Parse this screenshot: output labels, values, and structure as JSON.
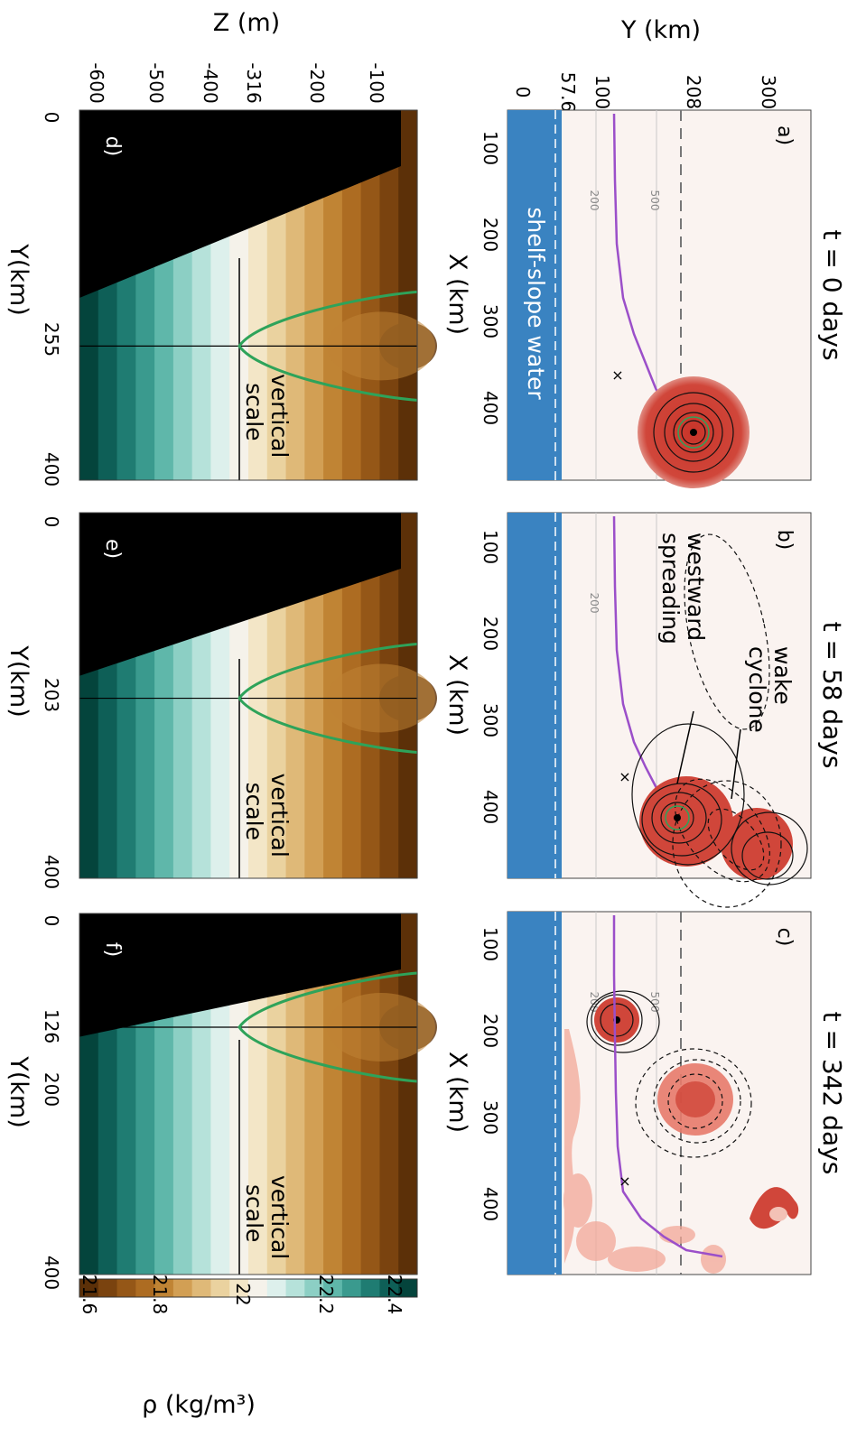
{
  "figure": {
    "top_row": {
      "ylabel": "Y (km)",
      "xlabel": "X (km)",
      "y_ticks": [
        "0",
        "57.6",
        "100",
        "208",
        "300"
      ],
      "x_ticks": [
        "100",
        "200",
        "300",
        "400"
      ],
      "panels": [
        {
          "label": "a)",
          "title": "t = 0 days"
        },
        {
          "label": "b)",
          "title": "t = 58 days"
        },
        {
          "label": "c)",
          "title": "t = 342 days"
        }
      ],
      "shelf_label": "shelf-slope water",
      "annotations": {
        "wake": "wake cyclone",
        "westward": "westward spreading"
      },
      "isobaths": {
        "a": [
          "200",
          "500"
        ],
        "b": [
          "200"
        ],
        "c": [
          "500",
          "200"
        ]
      }
    },
    "bottom_row": {
      "ylabel": "Z (m)",
      "xlabel": "Y(km)",
      "z_ticks": [
        "-600",
        "-500",
        "-400",
        "-316",
        "-200",
        "-100"
      ],
      "panels": [
        {
          "label": "d)",
          "y_ticks": [
            "0",
            "255",
            "400"
          ],
          "annot": "vertical scale"
        },
        {
          "label": "e)",
          "y_ticks": [
            "0",
            "203",
            "400"
          ],
          "annot": "vertical scale"
        },
        {
          "label": "f)",
          "y_ticks": [
            "0",
            "126",
            "200",
            "400"
          ],
          "annot": "vertical scale"
        }
      ]
    },
    "colorbar": {
      "label": "ρ (kg/m³)",
      "ticks": [
        "21.6",
        "21.8",
        "22",
        "22.2",
        "22.4"
      ],
      "colors": [
        "#5c3008",
        "#7a430f",
        "#955717",
        "#ad6c22",
        "#c08434",
        "#d29f54",
        "#dfb978",
        "#ead29f",
        "#f3e6c7",
        "#f5f2ea",
        "#ddf0ec",
        "#b6e2da",
        "#8ccfc4",
        "#5fb7aa",
        "#3a9a8e",
        "#1f7c72",
        "#0e5f57",
        "#04443c"
      ]
    },
    "colors": {
      "eddy": "#d0463a",
      "shelf": "#3a83c1",
      "track": "#9b4fc9",
      "section_green": "#2ea35a",
      "topo": "#000000"
    }
  },
  "chart_data": [
    {
      "type": "heatmap",
      "panel": "a",
      "title": "t = 0 days",
      "xlabel": "X (km)",
      "ylabel": "Y (km)",
      "xlim": [
        0,
        480
      ],
      "ylim": [
        0,
        350
      ],
      "shelf_edge_y": 57.6,
      "section_y": 208,
      "eddy_center": [
        430,
        255
      ]
    },
    {
      "type": "heatmap",
      "panel": "b",
      "title": "t = 58 days",
      "xlabel": "X (km)",
      "ylabel": "Y (km)",
      "xlim": [
        0,
        480
      ],
      "ylim": [
        0,
        350
      ],
      "shelf_edge_y": 57.6,
      "section_y": 208,
      "eddy_center": [
        410,
        203
      ]
    },
    {
      "type": "heatmap",
      "panel": "c",
      "title": "t = 342 days",
      "xlabel": "X (km)",
      "ylabel": "Y (km)",
      "xlim": [
        0,
        480
      ],
      "ylim": [
        0,
        350
      ],
      "shelf_edge_y": 57.6,
      "section_y": 208,
      "eddy_center": [
        130,
        126
      ]
    },
    {
      "type": "heatmap",
      "panel": "d",
      "xlabel": "Y(km)",
      "ylabel": "Z (m)",
      "xlim": [
        0,
        400
      ],
      "ylim": [
        -600,
        0
      ],
      "vertical_scale_z": -316,
      "section_y": 255
    },
    {
      "type": "heatmap",
      "panel": "e",
      "xlabel": "Y(km)",
      "ylabel": "Z (m)",
      "xlim": [
        0,
        400
      ],
      "ylim": [
        -600,
        0
      ],
      "vertical_scale_z": -316,
      "section_y": 203
    },
    {
      "type": "heatmap",
      "panel": "f",
      "xlabel": "Y(km)",
      "ylabel": "Z (m)",
      "xlim": [
        0,
        400
      ],
      "ylim": [
        -600,
        0
      ],
      "vertical_scale_z": -316,
      "section_y": 126
    }
  ]
}
